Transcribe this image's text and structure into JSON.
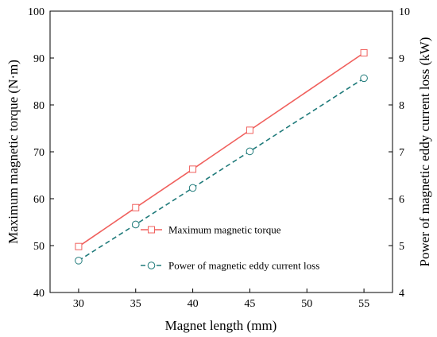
{
  "chart_data": {
    "type": "line",
    "title": "",
    "xlabel": "Magnet length (mm)",
    "ylabel_left": "Maximum magnetic torque (N·m)",
    "ylabel_right": "Power of magnetic eddy current loss (kW)",
    "x": [
      30,
      35,
      40,
      45,
      50,
      55
    ],
    "xlim": [
      27.5,
      57.5
    ],
    "ylim_left": [
      40,
      100
    ],
    "ylim_right": [
      4,
      10
    ],
    "xticks": [
      "30",
      "35",
      "40",
      "45",
      "50",
      "55"
    ],
    "yticks_left": [
      "40",
      "50",
      "60",
      "70",
      "80",
      "90",
      "100"
    ],
    "yticks_right": [
      "4",
      "5",
      "6",
      "7",
      "8",
      "9",
      "10"
    ],
    "grid": false,
    "legend_position": "lower-right",
    "series": [
      {
        "name": "Maximum magnetic torque",
        "axis": "left",
        "color": "#f0605d",
        "line_style": "solid",
        "marker": "square",
        "x": [
          30,
          35,
          40,
          45,
          55
        ],
        "values": [
          49.8,
          58.1,
          66.3,
          74.6,
          91.1
        ]
      },
      {
        "name": "Power of magnetic eddy current loss",
        "axis": "right",
        "color": "#1f7a7a",
        "line_style": "dashed",
        "marker": "circle",
        "x": [
          30,
          35,
          40,
          45,
          55
        ],
        "values": [
          4.68,
          5.45,
          6.23,
          7.01,
          8.57
        ]
      }
    ]
  }
}
